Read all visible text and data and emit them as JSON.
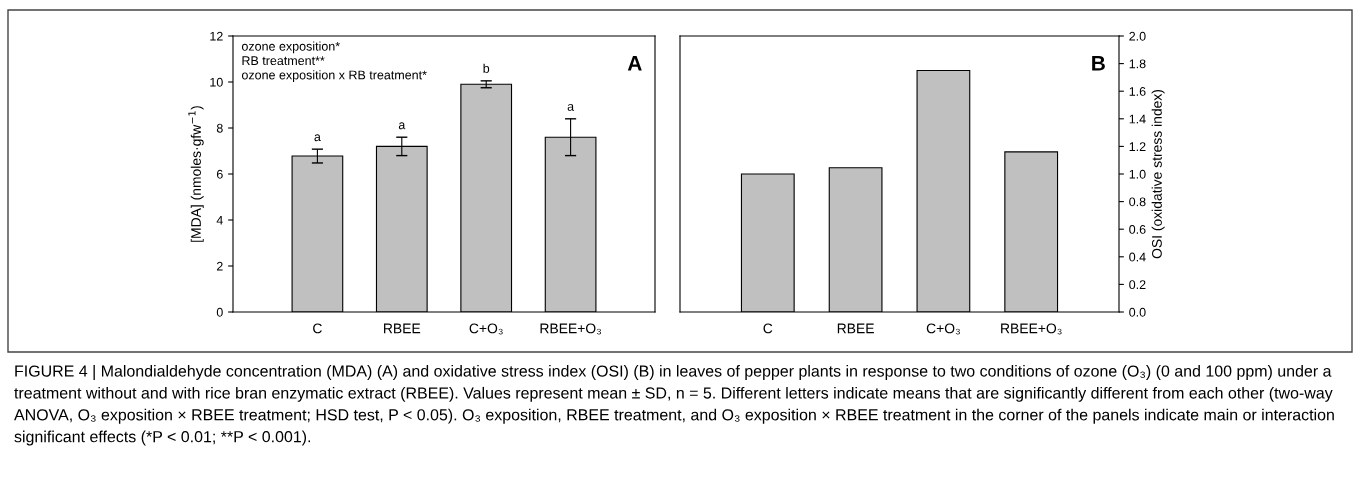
{
  "chart_data": [
    {
      "type": "bar",
      "categories": [
        "C",
        "RBEE",
        "C+O₃",
        "RBEE+O₃"
      ],
      "ylabel": "[MDA] (nmoles·gfw$^{−1}$)",
      "series": [
        {
          "color": "#c0c0c0",
          "values": [
            6.78,
            7.2,
            9.9,
            7.6
          ],
          "errors": [
            0.3,
            0.4,
            0.15,
            0.8
          ]
        }
      ],
      "ylim": [
        0,
        12
      ],
      "yticks": [
        0,
        2,
        4,
        6,
        8,
        10,
        12
      ],
      "grid": false,
      "legend": false,
      "annotations": [
        "ozone exposition*",
        "RB treatment**",
        "ozone exposition x RB treatment*",
        "A",
        {
          "text": "a",
          "x": "C",
          "y": 7.08
        },
        {
          "text": "a",
          "x": "RBEE",
          "y": 7.6
        },
        {
          "text": "b",
          "x": "C+O₃",
          "y": 10.05
        },
        {
          "text": "a",
          "x": "RBEE+O₃",
          "y": 8.4
        },
        "FIGURE 4 | Malondialdehyde concentration (MDA) (A) and oxidative stress index (OSI) (B) in leaves of pepper plants in response to two conditions of ozone (O₃) (0 and 100 ppm) under a treatment without and with rice bran enzymatic extract (RBEE). Values represent mean ± SD, n = 5. Different letters indicate means that are significantly different from each other (two-way ANOVA, O₃ exposition × RBEE treatment; HSD test, P < 0.05). O₃ exposition, RBEE treatment, and O₃ exposition × RBEE treatment in the corner of the panels indicate main or interaction significant effects (*P < 0.01; **P < 0.001)."
      ]
    },
    {
      "type": "bar",
      "categories": [
        "C",
        "RBEE",
        "C+O₃",
        "RBEE+O₃"
      ],
      "y2label": "OSI (oxidative stress index)",
      "series": [
        {
          "color": "#c0c0c0",
          "values": [
            1.0,
            1.045,
            1.75,
            1.16
          ],
          "axis": "y2"
        }
      ],
      "y2lim": [
        0,
        2
      ],
      "y2ticks": [
        {
          "value": 0,
          "label": "0.0"
        },
        {
          "value": 0.2,
          "label": "0.2"
        },
        {
          "value": 0.4,
          "label": "0.4"
        },
        {
          "value": 0.6,
          "label": "0.6"
        },
        {
          "value": 0.8,
          "label": "0.8"
        },
        {
          "value": 1.0,
          "label": "1.0"
        },
        {
          "value": 1.2,
          "label": "1.2"
        },
        {
          "value": 1.4,
          "label": "1.4"
        },
        {
          "value": 1.6,
          "label": "1.6"
        },
        {
          "value": 1.8,
          "label": "1.8"
        },
        {
          "value": 2.0,
          "label": "2.0"
        }
      ],
      "grid": false,
      "legend": false,
      "annotations": [
        "B"
      ]
    }
  ]
}
